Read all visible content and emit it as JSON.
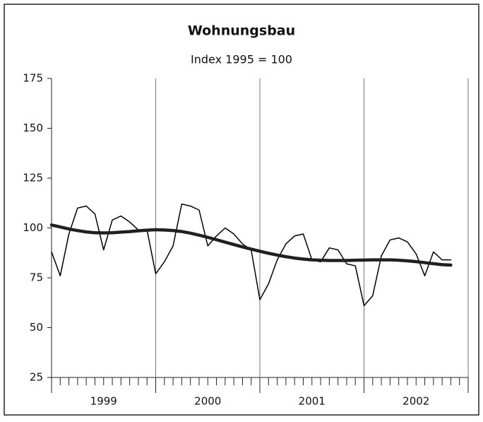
{
  "chart_data": {
    "type": "line",
    "title": "Wohnungsbau",
    "subtitle": "Index 1995 = 100",
    "categories": [
      null,
      null,
      null,
      null,
      null,
      null,
      null,
      null,
      null,
      null,
      null,
      null,
      null,
      null,
      null,
      null,
      null,
      null,
      null,
      null,
      null,
      null,
      null,
      null,
      null,
      null,
      null,
      null,
      null,
      null,
      null,
      null,
      null,
      null,
      null,
      null,
      null,
      null,
      null,
      null,
      null,
      null,
      null,
      null,
      null,
      null,
      null
    ],
    "year_labels": [
      "1999",
      "2000",
      "2001",
      "2002"
    ],
    "series": [
      {
        "color": "#000000",
        "values": [
          88,
          76,
          97,
          110,
          111,
          107,
          89,
          104,
          106,
          103,
          99,
          99,
          77,
          83,
          91,
          112,
          111,
          109,
          91,
          96,
          100,
          97,
          92,
          89,
          64,
          72,
          84,
          92,
          96,
          97,
          84,
          83,
          90,
          89,
          82,
          81,
          61,
          66,
          86,
          94,
          95,
          93,
          87,
          76,
          88,
          84,
          84
        ]
      },
      {
        "color": "#231f20",
        "values": [
          101.5,
          100.5,
          99.5,
          98.7,
          98,
          97.6,
          97.5,
          97.6,
          97.9,
          98.2,
          98.6,
          98.9,
          99.1,
          99,
          98.7,
          98.2,
          97.4,
          96.4,
          95.3,
          94.1,
          92.9,
          91.7,
          90.5,
          89.4,
          88.3,
          87.3,
          86.4,
          85.6,
          84.9,
          84.4,
          84,
          83.8,
          83.7,
          83.7,
          83.7,
          83.8,
          83.9,
          84,
          84,
          84,
          83.8,
          83.5,
          83.1,
          82.6,
          82.1,
          81.6,
          81.4
        ]
      }
    ],
    "ylim": [
      25,
      175
    ],
    "yticks": [
      25,
      50,
      75,
      100,
      125,
      150,
      175
    ]
  }
}
